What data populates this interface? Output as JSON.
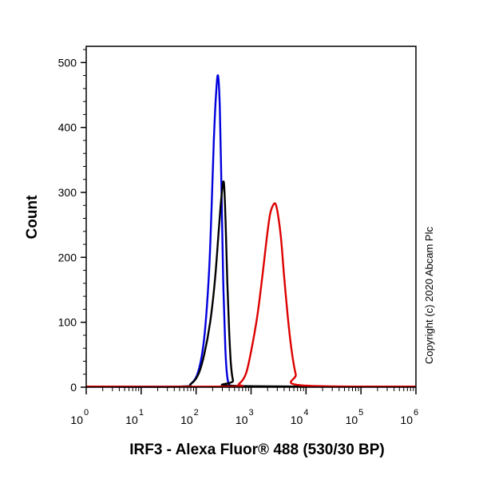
{
  "chart_data": {
    "type": "line",
    "x_scale": "log",
    "xlim": [
      1,
      1000000
    ],
    "ylim": [
      0,
      525
    ],
    "xlabel": "IRF3 - Alexa Fluor® 488 (530/30 BP)",
    "ylabel": "Count",
    "grid": false,
    "y_ticks": [
      0,
      100,
      200,
      300,
      400,
      500
    ],
    "y_tick_labels": [
      "0",
      "100",
      "200",
      "300",
      "400",
      "500"
    ],
    "x_ticks": [
      1,
      10,
      100,
      1000,
      10000,
      100000,
      1000000
    ],
    "x_tick_base": [
      "10",
      "10",
      "10",
      "10",
      "10",
      "10",
      "10"
    ],
    "x_tick_exp": [
      "0",
      "1",
      "2",
      "3",
      "4",
      "5",
      "6"
    ],
    "series": [
      {
        "color": "#0000dd",
        "x": [
          1,
          50,
          80,
          110,
          140,
          170,
          190,
          210,
          230,
          250,
          270,
          290,
          310,
          340,
          370,
          420,
          500,
          1000000
        ],
        "y": [
          1,
          1,
          5,
          25,
          75,
          170,
          270,
          380,
          450,
          480,
          430,
          300,
          170,
          60,
          15,
          2,
          1,
          1
        ]
      },
      {
        "color": "#000000",
        "x": [
          1,
          50,
          80,
          110,
          140,
          180,
          220,
          260,
          290,
          320,
          345,
          370,
          400,
          430,
          470,
          530,
          1000000
        ],
        "y": [
          1,
          1,
          5,
          20,
          50,
          100,
          165,
          245,
          295,
          315,
          250,
          160,
          85,
          35,
          10,
          2,
          1
        ]
      },
      {
        "color": "#dd0000",
        "x": [
          1,
          400,
          600,
          800,
          1000,
          1300,
          1600,
          1900,
          2200,
          2500,
          2800,
          3100,
          3500,
          4000,
          4700,
          5500,
          6500,
          8000,
          1000000
        ],
        "y": [
          1,
          1,
          5,
          20,
          55,
          110,
          170,
          225,
          265,
          280,
          282,
          265,
          230,
          170,
          105,
          55,
          20,
          3,
          1
        ]
      }
    ]
  },
  "copyright": "Copyright (c) 2020 Abcam Plc"
}
